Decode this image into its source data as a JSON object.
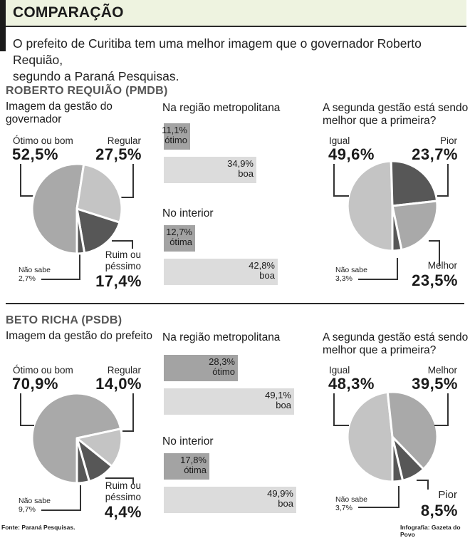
{
  "header": {
    "title": "COMPARAÇÃO",
    "intro_line1": "O prefeito de Curitiba tem uma melhor imagem que o governador Roberto Requião,",
    "intro_line2": "segundo a Paraná Pesquisas."
  },
  "colors": {
    "header_band": "#eef3e0",
    "slice_medium": "#a9a9a9",
    "slice_light": "#c4c4c4",
    "slice_dark": "#575757",
    "bar_dark": "#a3a3a3",
    "bar_light": "#dcdcdc"
  },
  "sections": [
    {
      "title": "ROBERTO REQUIÃO (PMDB)",
      "image_title_line1": "Imagem da gestão do",
      "image_title_line2": "governador",
      "metro_title": "Na região metropolitana",
      "interior_title": "No interior",
      "second_title_line1": "A segunda gestão está sendo",
      "second_title_line2": "melhor que a primeira?"
    },
    {
      "title": "BETO RICHA (PSDB)",
      "image_title_line1": "Imagem da gestão do prefeito",
      "image_title_line2": "",
      "metro_title": "Na região metropolitana",
      "interior_title": "No interior",
      "second_title_line1": "A segunda gestão está sendo",
      "second_title_line2": "melhor que a primeira?"
    }
  ],
  "chart_data": [
    {
      "type": "pie",
      "title": "Roberto Requião (PMDB) — Imagem da gestão do governador",
      "slices": [
        {
          "label": "Ótimo ou bom",
          "value": 52.5,
          "display": "52,5%",
          "color": "#a9a9a9"
        },
        {
          "label": "Regular",
          "value": 27.5,
          "display": "27,5%",
          "color": "#c4c4c4"
        },
        {
          "label": "Ruim ou péssimo",
          "value": 17.4,
          "display": "17,4%",
          "color": "#575757"
        },
        {
          "label": "Não sabe",
          "value": 2.7,
          "display": "2,7%",
          "color": "#575757"
        }
      ]
    },
    {
      "type": "bar",
      "title": "Roberto Requião (PMDB) — Na região metropolitana",
      "orientation": "horizontal",
      "categories": [
        "ótimo",
        "boa"
      ],
      "values": [
        11.1,
        34.9
      ],
      "display": [
        "11,1%",
        "34,9%"
      ]
    },
    {
      "type": "bar",
      "title": "Roberto Requião (PMDB) — No interior",
      "orientation": "horizontal",
      "categories": [
        "ótima",
        "boa"
      ],
      "values": [
        12.7,
        42.8
      ],
      "display": [
        "12,7%",
        "42,8%"
      ]
    },
    {
      "type": "pie",
      "title": "Roberto Requião (PMDB) — A segunda gestão está sendo melhor que a primeira?",
      "slices": [
        {
          "label": "Igual",
          "value": 49.6,
          "display": "49,6%",
          "color": "#c4c4c4"
        },
        {
          "label": "Pior",
          "value": 23.7,
          "display": "23,7%",
          "color": "#575757"
        },
        {
          "label": "Melhor",
          "value": 23.5,
          "display": "23,5%",
          "color": "#a9a9a9"
        },
        {
          "label": "Não sabe",
          "value": 3.3,
          "display": "3,3%",
          "color": "#575757"
        }
      ]
    },
    {
      "type": "pie",
      "title": "Beto Richa (PSDB) — Imagem da gestão do prefeito",
      "slices": [
        {
          "label": "Ótimo ou bom",
          "value": 70.9,
          "display": "70,9%",
          "color": "#a9a9a9"
        },
        {
          "label": "Regular",
          "value": 14.0,
          "display": "14,0%",
          "color": "#c4c4c4"
        },
        {
          "label": "Ruim ou péssimo",
          "value": 4.4,
          "display": "4,4%",
          "color": "#575757"
        },
        {
          "label": "Não sabe",
          "value": 9.7,
          "display": "9,7%",
          "color": "#575757"
        }
      ],
      "render_order_sizes": [
        70.9,
        14.0,
        9.7,
        4.4
      ]
    },
    {
      "type": "bar",
      "title": "Beto Richa (PSDB) — Na região metropolitana",
      "orientation": "horizontal",
      "categories": [
        "ótimo",
        "boa"
      ],
      "values": [
        28.3,
        49.1
      ],
      "display": [
        "28,3%",
        "49,1%"
      ]
    },
    {
      "type": "bar",
      "title": "Beto Richa (PSDB) — No interior",
      "orientation": "horizontal",
      "categories": [
        "ótima",
        "boa"
      ],
      "values": [
        17.8,
        49.9
      ],
      "display": [
        "17,8%",
        "49,9%"
      ]
    },
    {
      "type": "pie",
      "title": "Beto Richa (PSDB) — A segunda gestão está sendo melhor que a primeira?",
      "slices": [
        {
          "label": "Igual",
          "value": 48.3,
          "display": "48,3%",
          "color": "#c4c4c4"
        },
        {
          "label": "Melhor",
          "value": 39.5,
          "display": "39,5%",
          "color": "#a9a9a9"
        },
        {
          "label": "Pior",
          "value": 8.5,
          "display": "8,5%",
          "color": "#575757"
        },
        {
          "label": "Não sabe",
          "value": 3.7,
          "display": "3,7%",
          "color": "#575757"
        }
      ]
    }
  ],
  "footer": {
    "source": "Fonte: Paraná Pesquisas.",
    "credit": "Infografia: Gazeta do Povo"
  }
}
